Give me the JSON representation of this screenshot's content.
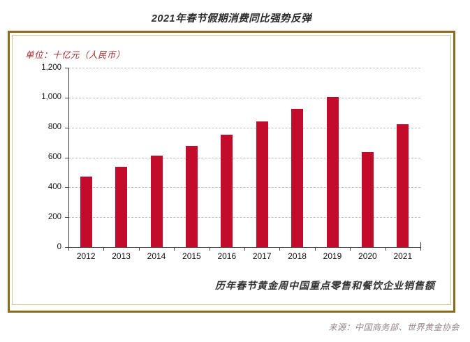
{
  "title": {
    "text": "2021年春节假期消费同比强势反弹"
  },
  "unit_label": {
    "text": "单位：十亿元（人民币）"
  },
  "caption": {
    "text": "历年春节黄金周中国重点零售和餐饮企业销售额"
  },
  "source": {
    "text": "来源：中国商务部、世界黄金协会"
  },
  "colors": {
    "bar": "#C30B2C",
    "panel_border": "#8C6A1E",
    "panel_inner_border": "#D5C698",
    "grid": "#bbbbbb",
    "axis": "#404040",
    "unit_text": "#A63434",
    "source_text": "#968585",
    "title_text": "#2b2b2b"
  },
  "chart_data": {
    "type": "bar",
    "title": "2021年春节假期消费同比强势反弹",
    "ylabel": "十亿元（人民币）",
    "xlabel": "",
    "categories": [
      "2012",
      "2013",
      "2014",
      "2015",
      "2016",
      "2017",
      "2018",
      "2019",
      "2020",
      "2021"
    ],
    "values": [
      470,
      539,
      611,
      678,
      754,
      840,
      926,
      1005,
      635,
      821
    ],
    "ylim": [
      0,
      1200
    ],
    "y_tick_step": 200,
    "grid": "horizontal dashed",
    "legend": "none",
    "annotation": "历年春节黄金周中国重点零售和餐饮企业销售额"
  }
}
